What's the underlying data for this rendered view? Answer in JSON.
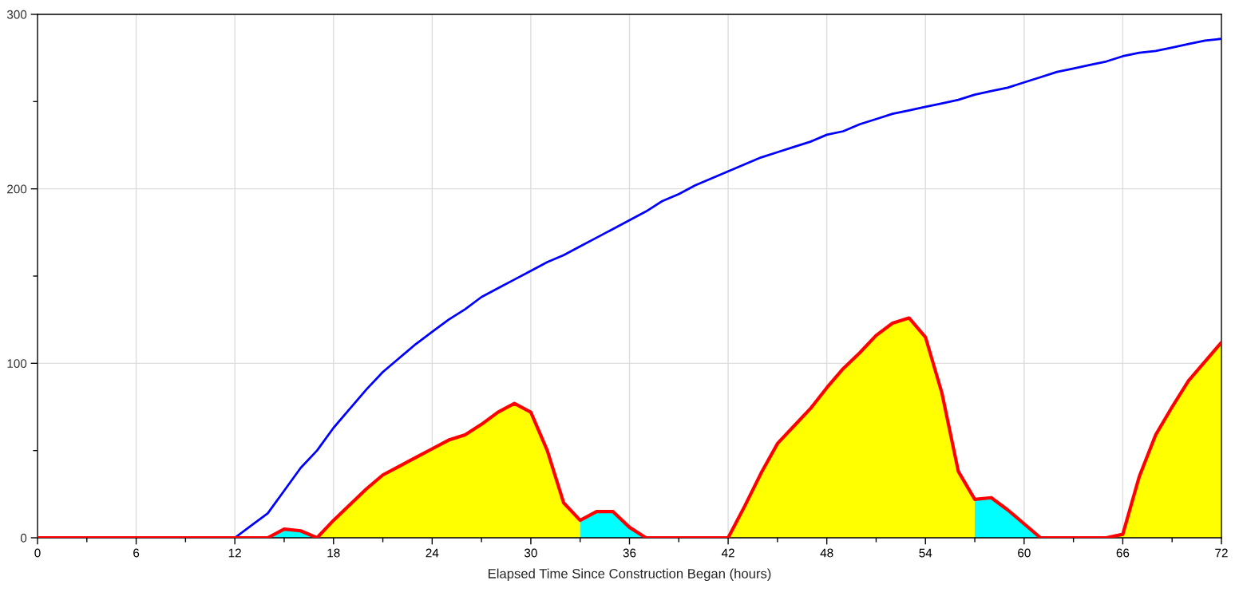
{
  "chart_data": {
    "type": "line",
    "xlabel": "Elapsed Time Since Construction Began (hours)",
    "x": [
      0,
      1,
      2,
      3,
      4,
      5,
      6,
      7,
      8,
      9,
      10,
      11,
      12,
      13,
      14,
      15,
      16,
      17,
      18,
      19,
      20,
      21,
      22,
      23,
      24,
      25,
      26,
      27,
      28,
      29,
      30,
      31,
      32,
      33,
      34,
      35,
      36,
      37,
      38,
      39,
      40,
      41,
      42,
      43,
      44,
      45,
      46,
      47,
      48,
      49,
      50,
      51,
      52,
      53,
      54,
      55,
      56,
      57,
      58,
      59,
      60,
      61,
      62,
      63,
      64,
      65,
      66,
      67,
      68,
      69,
      70,
      71,
      72
    ],
    "series": [
      {
        "color": "#0000ff",
        "values": [
          null,
          null,
          null,
          null,
          null,
          null,
          null,
          null,
          null,
          null,
          null,
          null,
          0,
          7,
          14,
          27,
          40,
          50,
          63,
          74,
          85,
          95,
          103,
          111,
          118,
          125,
          131,
          138,
          143,
          148,
          153,
          158,
          162,
          167,
          172,
          177,
          182,
          187,
          193,
          197,
          202,
          206,
          210,
          214,
          218,
          221,
          224,
          227,
          231,
          233,
          237,
          240,
          243,
          245,
          247,
          249,
          251,
          254,
          256,
          258,
          261,
          264,
          267,
          269,
          271,
          273,
          276,
          278,
          279,
          281,
          283,
          285,
          286
        ]
      },
      {
        "type": "area",
        "color": "#ffff00",
        "values": [
          null,
          null,
          null,
          null,
          null,
          null,
          null,
          null,
          null,
          null,
          null,
          null,
          null,
          null,
          null,
          null,
          null,
          0,
          10,
          19,
          28,
          36,
          41,
          46,
          51,
          56,
          59,
          65,
          72,
          77,
          72,
          50,
          20,
          10,
          null,
          null,
          null,
          null,
          null,
          null,
          null,
          null,
          0,
          18,
          37,
          54,
          64,
          74,
          86,
          97,
          106,
          116,
          123,
          126,
          115,
          83,
          38,
          22,
          null,
          null,
          null,
          null,
          null,
          null,
          null,
          0,
          2,
          35,
          59,
          75,
          90,
          101,
          112
        ]
      },
      {
        "type": "area",
        "color": "#00ffff",
        "values": [
          null,
          null,
          null,
          null,
          null,
          null,
          null,
          null,
          null,
          null,
          null,
          null,
          null,
          null,
          0,
          5,
          4,
          0,
          null,
          null,
          null,
          null,
          null,
          null,
          null,
          null,
          null,
          null,
          null,
          null,
          null,
          null,
          null,
          10,
          15,
          15,
          6,
          0,
          null,
          null,
          null,
          null,
          null,
          null,
          null,
          null,
          null,
          null,
          null,
          null,
          null,
          null,
          null,
          null,
          null,
          null,
          null,
          22,
          23,
          16,
          8,
          0,
          null,
          null,
          null,
          null,
          null,
          null,
          null,
          null,
          null,
          null,
          null
        ]
      },
      {
        "color": "#ff0000",
        "values": [
          0,
          0,
          0,
          0,
          0,
          0,
          0,
          0,
          0,
          0,
          0,
          0,
          0,
          0,
          0,
          5,
          4,
          0,
          10,
          19,
          28,
          36,
          41,
          46,
          51,
          56,
          59,
          65,
          72,
          77,
          72,
          50,
          20,
          10,
          15,
          15,
          6,
          0,
          0,
          0,
          0,
          0,
          0,
          18,
          37,
          54,
          64,
          74,
          86,
          97,
          106,
          116,
          123,
          126,
          115,
          83,
          38,
          22,
          23,
          16,
          8,
          0,
          0,
          0,
          0,
          0,
          2,
          35,
          59,
          75,
          90,
          101,
          112
        ]
      }
    ],
    "xlim": [
      0,
      72
    ],
    "xticks": [
      0,
      {
        "value": 3,
        "label": null
      },
      6,
      {
        "value": 9,
        "label": null
      },
      12,
      {
        "value": 15,
        "label": null
      },
      18,
      {
        "value": 21,
        "label": null
      },
      24,
      {
        "value": 27,
        "label": null
      },
      30,
      {
        "value": 33,
        "label": null
      },
      36,
      {
        "value": 39,
        "label": null
      },
      42,
      {
        "value": 45,
        "label": null
      },
      48,
      {
        "value": 51,
        "label": null
      },
      54,
      {
        "value": 57,
        "label": null
      },
      60,
      {
        "value": 63,
        "label": null
      },
      66,
      {
        "value": 69,
        "label": null
      },
      72
    ],
    "ylim": [
      0,
      300
    ],
    "yticks": [
      0,
      {
        "value": 50,
        "label": null
      },
      100,
      {
        "value": 150,
        "label": null
      },
      200,
      {
        "value": 250,
        "label": null
      },
      300
    ],
    "grid": true,
    "legend": false,
    "marker": "none",
    "line_style": "solid"
  }
}
